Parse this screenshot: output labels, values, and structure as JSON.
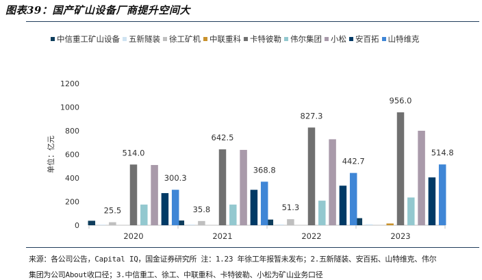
{
  "figure_title": "图表39：国产矿山设备厂商提升空间大",
  "source_note": [
    "来源：各公司公告，Capital IQ，国金证券研究所 注：1.23 年徐工年报暂未发布；2.五新隧装、安百拓、山特维克、伟尔",
    "集团为公司About收口径；3.中信重工、徐工、中联重科、卡特彼勒、小松为矿山业务口径"
  ],
  "colors": {
    "中信重工矿山设备": "#0e3d5c",
    "五新隧装": "#cfe3f2",
    "徐工矿机": "#bfbfbf",
    "中联重科": "#c9922d",
    "卡特彼勒": "#707070",
    "伟尔集团": "#93c8cf",
    "小松": "#a99aaa",
    "安百拓": "#003a66",
    "山特维克": "#3f86d6"
  },
  "chart_data": {
    "type": "bar",
    "title": "",
    "xlabel": "",
    "ylabel": "单位：亿元",
    "ylim": [
      0,
      1200
    ],
    "yticks": [
      0,
      200,
      400,
      600,
      800,
      1000,
      1200
    ],
    "grid": false,
    "legend_position": "top",
    "categories": [
      "2020",
      "2021",
      "2022",
      "2023"
    ],
    "series": [
      {
        "name": "中信重工矿山设备",
        "values": [
          38,
          40,
          48,
          60
        ]
      },
      {
        "name": "五新隧装",
        "values": [
          5,
          6,
          7,
          8
        ]
      },
      {
        "name": "徐工矿机",
        "values": [
          25.5,
          35.8,
          51.3,
          null
        ]
      },
      {
        "name": "中联重科",
        "values": [
          0,
          0,
          0,
          15
        ]
      },
      {
        "name": "卡特彼勒",
        "values": [
          514.0,
          642.5,
          827.3,
          956.0
        ]
      },
      {
        "name": "伟尔集团",
        "values": [
          175,
          175,
          208,
          235
        ]
      },
      {
        "name": "小松",
        "values": [
          510,
          638,
          728,
          800
        ]
      },
      {
        "name": "安百拓",
        "values": [
          272,
          300,
          335,
          405
        ]
      },
      {
        "name": "山特维克",
        "values": [
          300.3,
          368.8,
          442.7,
          514.8
        ]
      }
    ],
    "data_labels": [
      {
        "series": "徐工矿机",
        "category": "2020",
        "text": "25.5"
      },
      {
        "series": "徐工矿机",
        "category": "2021",
        "text": "35.8"
      },
      {
        "series": "徐工矿机",
        "category": "2022",
        "text": "51.3"
      },
      {
        "series": "卡特彼勒",
        "category": "2020",
        "text": "514.0"
      },
      {
        "series": "卡特彼勒",
        "category": "2021",
        "text": "642.5"
      },
      {
        "series": "卡特彼勒",
        "category": "2022",
        "text": "827.3"
      },
      {
        "series": "卡特彼勒",
        "category": "2023",
        "text": "956.0"
      },
      {
        "series": "山特维克",
        "category": "2020",
        "text": "300.3"
      },
      {
        "series": "山特维克",
        "category": "2021",
        "text": "368.8"
      },
      {
        "series": "山特维克",
        "category": "2022",
        "text": "442.7"
      },
      {
        "series": "山特维克",
        "category": "2023",
        "text": "514.8"
      }
    ]
  }
}
